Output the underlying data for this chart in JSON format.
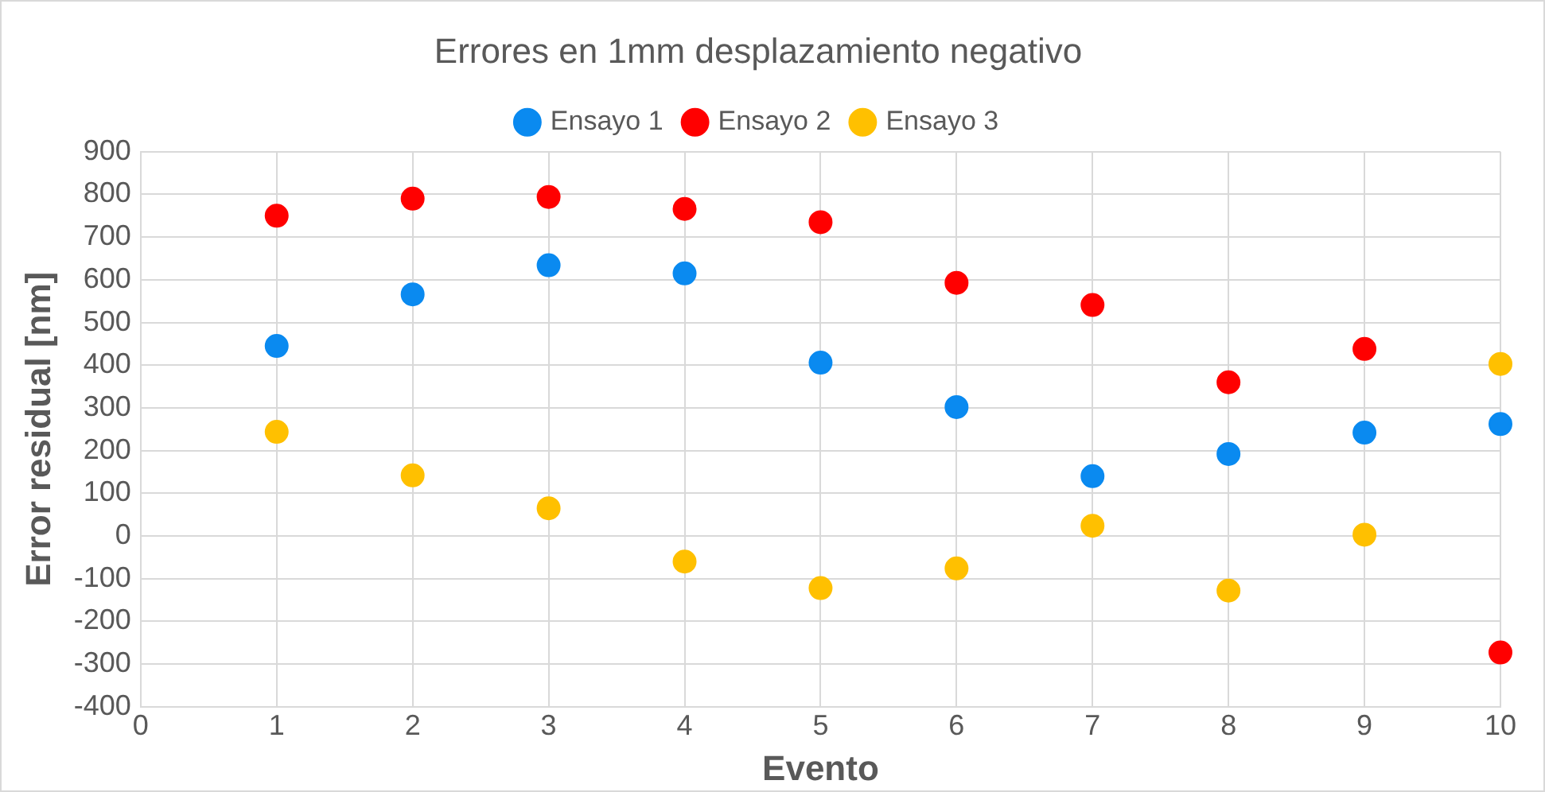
{
  "chart_data": {
    "type": "scatter",
    "title": "Errores en 1mm desplazamiento negativo",
    "xlabel": "Evento",
    "ylabel": "Error residual [nm]",
    "x": [
      1,
      2,
      3,
      4,
      5,
      6,
      7,
      8,
      9,
      10
    ],
    "series": [
      {
        "name": "Ensayo 1",
        "color": "#0a8af0",
        "values": [
          445,
          566,
          634,
          615,
          406,
          302,
          140,
          192,
          242,
          262
        ]
      },
      {
        "name": "Ensayo 2",
        "color": "#ff0000",
        "values": [
          750,
          790,
          794,
          766,
          735,
          593,
          541,
          360,
          438,
          -273
        ]
      },
      {
        "name": "Ensayo 3",
        "color": "#ffc000",
        "values": [
          244,
          142,
          65,
          -60,
          -122,
          -76,
          24,
          -128,
          3,
          403
        ]
      }
    ],
    "xlim": [
      0,
      10
    ],
    "xticks": [
      0,
      1,
      2,
      3,
      4,
      5,
      6,
      7,
      8,
      9,
      10
    ],
    "ylim": [
      -400,
      900
    ],
    "yticks": [
      -400,
      -300,
      -200,
      -100,
      0,
      100,
      200,
      300,
      400,
      500,
      600,
      700,
      800,
      900
    ],
    "grid": true,
    "legend": "top",
    "marker": "circle"
  }
}
